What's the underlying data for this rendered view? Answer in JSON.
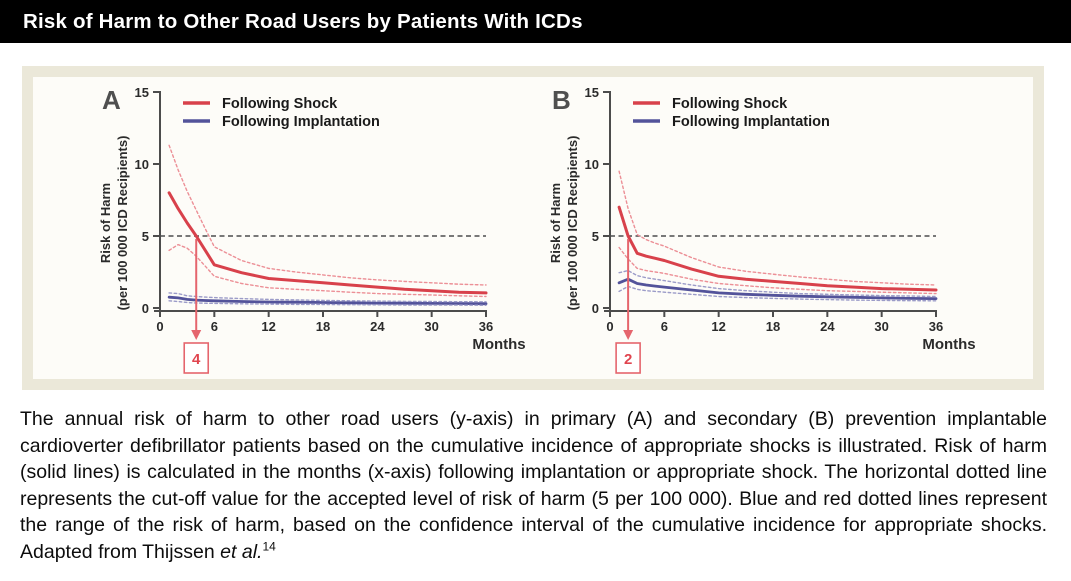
{
  "title_bar": {
    "title": "Risk of Harm to Other Road Users by Patients With ICDs"
  },
  "colors": {
    "title_bg": "#000000",
    "title_text": "#ffffff",
    "panel_frame": "#ebe8d9",
    "panel_inner": "#fdfcf8",
    "axis": "#4c4c4c",
    "tick_text": "#2b2b2b",
    "shock_solid": "#d8414b",
    "shock_dotted": "#ec8f96",
    "implant_solid": "#53539a",
    "implant_dotted": "#9b9bc8",
    "cutoff_line": "#4d4d4d",
    "arrow": "#e5656d",
    "arrow_value": "#e0454f",
    "panel_letter": "#4f4f4f"
  },
  "caption": {
    "text_main": "The annual risk of harm to other road users (y-axis) in primary (A) and secondary (B) prevention implantable cardioverter defibrillator patients based on the cumulative incidence of appropriate shocks is illustrated. Risk of harm (solid lines) is calculated in the months (x-axis) following implantation or appropriate shock. The horizontal dotted line represents the cut-off value for the accepted level of risk of harm (5 per 100 000). Blue and red dotted lines represent the range of the risk of harm, based on the confidence interval of the cumulative incidence for appropriate shocks. Adapted from Thijssen ",
    "italic_part": "et al.",
    "superscript": "14"
  },
  "chart_data": [
    {
      "type": "line",
      "panel_label": "A",
      "xlabel": "Months",
      "ylabel_line1": "Risk of Harm",
      "ylabel_line2": "(per 100 000 ICD Recipients)",
      "xlim": [
        0,
        36
      ],
      "ylim": [
        0,
        15
      ],
      "xticks": [
        0,
        6,
        12,
        18,
        24,
        30,
        36
      ],
      "yticks": [
        0,
        5,
        10,
        15
      ],
      "grid": false,
      "legend_position": "top-left-inside",
      "cutoff_value": 5,
      "arrow_month": 4,
      "arrow_label": "4",
      "legend": [
        {
          "label": "Following Shock",
          "color": "#d8414b"
        },
        {
          "label": "Following Implantation",
          "color": "#53539a"
        }
      ],
      "x": [
        1,
        2,
        3,
        4,
        5,
        6,
        9,
        12,
        15,
        18,
        21,
        24,
        27,
        30,
        33,
        36
      ],
      "series": [
        {
          "name": "Following Shock",
          "style": "solid",
          "color": "#d8414b",
          "values": [
            8.0,
            6.9,
            5.9,
            5.0,
            4.0,
            3.0,
            2.45,
            2.05,
            1.9,
            1.75,
            1.6,
            1.45,
            1.3,
            1.2,
            1.1,
            1.05
          ]
        },
        {
          "name": "Following Shock upper CI",
          "style": "dotted",
          "color": "#ec8f96",
          "values": [
            11.3,
            9.6,
            8.1,
            6.8,
            5.5,
            4.25,
            3.3,
            2.75,
            2.5,
            2.3,
            2.1,
            1.95,
            1.85,
            1.75,
            1.65,
            1.6
          ]
        },
        {
          "name": "Following Shock lower CI",
          "style": "dotted",
          "color": "#ec8f96",
          "values": [
            4.0,
            4.4,
            4.15,
            3.6,
            2.9,
            2.2,
            1.7,
            1.4,
            1.3,
            1.2,
            1.1,
            1.0,
            0.95,
            0.9,
            0.85,
            0.8
          ]
        },
        {
          "name": "Following Implantation",
          "style": "solid",
          "color": "#53539a",
          "values": [
            0.75,
            0.7,
            0.6,
            0.55,
            0.52,
            0.5,
            0.45,
            0.42,
            0.4,
            0.38,
            0.36,
            0.34,
            0.33,
            0.32,
            0.31,
            0.3
          ]
        },
        {
          "name": "Following Implantation upper CI",
          "style": "dotted",
          "color": "#9b9bc8",
          "values": [
            1.05,
            1.0,
            0.85,
            0.8,
            0.76,
            0.72,
            0.65,
            0.6,
            0.56,
            0.53,
            0.5,
            0.48,
            0.46,
            0.45,
            0.44,
            0.43
          ]
        },
        {
          "name": "Following Implantation lower CI",
          "style": "dotted",
          "color": "#9b9bc8",
          "values": [
            0.5,
            0.45,
            0.38,
            0.35,
            0.33,
            0.32,
            0.29,
            0.27,
            0.25,
            0.24,
            0.23,
            0.22,
            0.21,
            0.2,
            0.2,
            0.19
          ]
        }
      ]
    },
    {
      "type": "line",
      "panel_label": "B",
      "xlabel": "Months",
      "ylabel_line1": "Risk of Harm",
      "ylabel_line2": "(per 100 000 ICD Recipients)",
      "xlim": [
        0,
        36
      ],
      "ylim": [
        0,
        15
      ],
      "xticks": [
        0,
        6,
        12,
        18,
        24,
        30,
        36
      ],
      "yticks": [
        0,
        5,
        10,
        15
      ],
      "grid": false,
      "legend_position": "top-left-inside",
      "cutoff_value": 5,
      "arrow_month": 2,
      "arrow_label": "2",
      "legend": [
        {
          "label": "Following Shock",
          "color": "#d8414b"
        },
        {
          "label": "Following Implantation",
          "color": "#53539a"
        }
      ],
      "x": [
        1,
        2,
        3,
        4,
        5,
        6,
        9,
        12,
        15,
        18,
        21,
        24,
        27,
        30,
        33,
        36
      ],
      "series": [
        {
          "name": "Following Shock",
          "style": "solid",
          "color": "#d8414b",
          "values": [
            7.0,
            5.0,
            3.8,
            3.6,
            3.45,
            3.3,
            2.7,
            2.2,
            2.0,
            1.85,
            1.7,
            1.55,
            1.45,
            1.35,
            1.3,
            1.25
          ]
        },
        {
          "name": "Following Shock upper CI",
          "style": "dotted",
          "color": "#ec8f96",
          "values": [
            9.5,
            6.9,
            5.1,
            4.75,
            4.5,
            4.3,
            3.5,
            2.85,
            2.55,
            2.35,
            2.15,
            2.0,
            1.85,
            1.75,
            1.65,
            1.6
          ]
        },
        {
          "name": "Following Shock lower CI",
          "style": "dotted",
          "color": "#ec8f96",
          "values": [
            4.2,
            3.4,
            2.75,
            2.6,
            2.5,
            2.4,
            2.0,
            1.7,
            1.55,
            1.4,
            1.3,
            1.2,
            1.15,
            1.1,
            1.05,
            1.0
          ]
        },
        {
          "name": "Following Implantation",
          "style": "solid",
          "color": "#53539a",
          "values": [
            1.75,
            2.0,
            1.7,
            1.6,
            1.52,
            1.45,
            1.25,
            1.05,
            0.95,
            0.88,
            0.82,
            0.78,
            0.74,
            0.7,
            0.67,
            0.65
          ]
        },
        {
          "name": "Following Implantation upper CI",
          "style": "dotted",
          "color": "#9b9bc8",
          "values": [
            2.45,
            2.6,
            2.25,
            2.1,
            2.0,
            1.9,
            1.6,
            1.35,
            1.2,
            1.1,
            1.0,
            0.95,
            0.9,
            0.86,
            0.83,
            0.8
          ]
        },
        {
          "name": "Following Implantation lower CI",
          "style": "dotted",
          "color": "#9b9bc8",
          "values": [
            1.15,
            1.5,
            1.3,
            1.2,
            1.15,
            1.1,
            0.95,
            0.8,
            0.72,
            0.67,
            0.62,
            0.58,
            0.55,
            0.53,
            0.51,
            0.5
          ]
        }
      ]
    }
  ]
}
